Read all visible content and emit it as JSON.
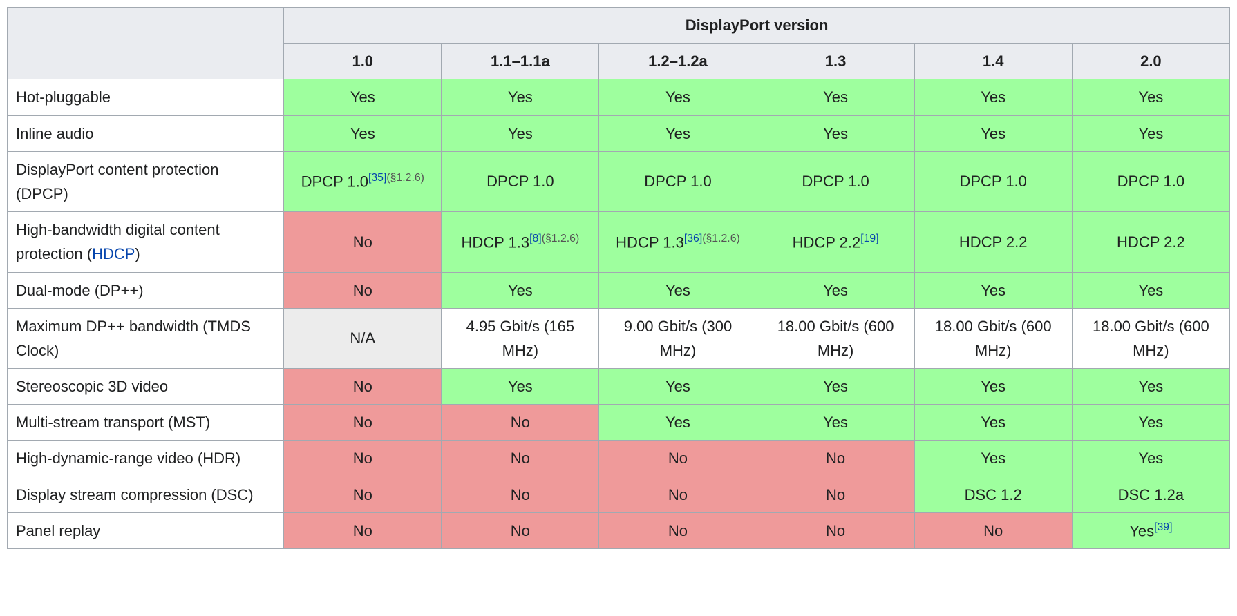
{
  "colors": {
    "yes_bg": "#9eff9e",
    "no_bg": "#ef9a9a",
    "na_bg": "#ececec",
    "header_bg": "#eaecf0",
    "border": "#a2a9b1",
    "link": "#0645ad",
    "text": "#202122",
    "ref_gray": "#555555"
  },
  "header": {
    "title": "DisplayPort version",
    "versions": [
      "1.0",
      "1.1–1.1a",
      "1.2–1.2a",
      "1.3",
      "1.4",
      "2.0"
    ]
  },
  "rows": [
    {
      "label_parts": [
        {
          "text": "Hot-pluggable"
        }
      ],
      "cells": [
        {
          "status": "yes",
          "parts": [
            {
              "text": "Yes"
            }
          ]
        },
        {
          "status": "yes",
          "parts": [
            {
              "text": "Yes"
            }
          ]
        },
        {
          "status": "yes",
          "parts": [
            {
              "text": "Yes"
            }
          ]
        },
        {
          "status": "yes",
          "parts": [
            {
              "text": "Yes"
            }
          ]
        },
        {
          "status": "yes",
          "parts": [
            {
              "text": "Yes"
            }
          ]
        },
        {
          "status": "yes",
          "parts": [
            {
              "text": "Yes"
            }
          ]
        }
      ]
    },
    {
      "label_parts": [
        {
          "text": "Inline audio"
        }
      ],
      "cells": [
        {
          "status": "yes",
          "parts": [
            {
              "text": "Yes"
            }
          ]
        },
        {
          "status": "yes",
          "parts": [
            {
              "text": "Yes"
            }
          ]
        },
        {
          "status": "yes",
          "parts": [
            {
              "text": "Yes"
            }
          ]
        },
        {
          "status": "yes",
          "parts": [
            {
              "text": "Yes"
            }
          ]
        },
        {
          "status": "yes",
          "parts": [
            {
              "text": "Yes"
            }
          ]
        },
        {
          "status": "yes",
          "parts": [
            {
              "text": "Yes"
            }
          ]
        }
      ]
    },
    {
      "label_parts": [
        {
          "text": "DisplayPort content protection (DPCP)"
        }
      ],
      "cells": [
        {
          "status": "yes",
          "parts": [
            {
              "text": "DPCP 1.0"
            },
            {
              "sup": true,
              "link": true,
              "text": "[35]"
            },
            {
              "sup": true,
              "ref_gray": true,
              "text": "(§1.2.6)"
            }
          ]
        },
        {
          "status": "yes",
          "parts": [
            {
              "text": "DPCP 1.0"
            }
          ]
        },
        {
          "status": "yes",
          "parts": [
            {
              "text": "DPCP 1.0"
            }
          ]
        },
        {
          "status": "yes",
          "parts": [
            {
              "text": "DPCP 1.0"
            }
          ]
        },
        {
          "status": "yes",
          "parts": [
            {
              "text": "DPCP 1.0"
            }
          ]
        },
        {
          "status": "yes",
          "parts": [
            {
              "text": "DPCP 1.0"
            }
          ]
        }
      ]
    },
    {
      "label_parts": [
        {
          "text": "High-bandwidth digital content protection ("
        },
        {
          "text": "HDCP",
          "link": true
        },
        {
          "text": ")"
        }
      ],
      "cells": [
        {
          "status": "no",
          "parts": [
            {
              "text": "No"
            }
          ]
        },
        {
          "status": "yes",
          "parts": [
            {
              "text": "HDCP 1.3"
            },
            {
              "sup": true,
              "link": true,
              "text": "[8]"
            },
            {
              "sup": true,
              "ref_gray": true,
              "text": "(§1.2.6)"
            }
          ]
        },
        {
          "status": "yes",
          "parts": [
            {
              "text": "HDCP 1.3"
            },
            {
              "sup": true,
              "link": true,
              "text": "[36]"
            },
            {
              "sup": true,
              "ref_gray": true,
              "text": "(§1.2.6)"
            }
          ]
        },
        {
          "status": "yes",
          "parts": [
            {
              "text": "HDCP 2.2"
            },
            {
              "sup": true,
              "link": true,
              "text": "[19]"
            }
          ]
        },
        {
          "status": "yes",
          "parts": [
            {
              "text": "HDCP 2.2"
            }
          ]
        },
        {
          "status": "yes",
          "parts": [
            {
              "text": "HDCP 2.2"
            }
          ]
        }
      ]
    },
    {
      "label_parts": [
        {
          "text": "Dual-mode (DP++)"
        }
      ],
      "cells": [
        {
          "status": "no",
          "parts": [
            {
              "text": "No"
            }
          ]
        },
        {
          "status": "yes",
          "parts": [
            {
              "text": "Yes"
            }
          ]
        },
        {
          "status": "yes",
          "parts": [
            {
              "text": "Yes"
            }
          ]
        },
        {
          "status": "yes",
          "parts": [
            {
              "text": "Yes"
            }
          ]
        },
        {
          "status": "yes",
          "parts": [
            {
              "text": "Yes"
            }
          ]
        },
        {
          "status": "yes",
          "parts": [
            {
              "text": "Yes"
            }
          ]
        }
      ]
    },
    {
      "label_parts": [
        {
          "text": "Maximum DP++ bandwidth (TMDS Clock)"
        }
      ],
      "cells": [
        {
          "status": "na",
          "parts": [
            {
              "text": "N/A"
            }
          ]
        },
        {
          "status": "plain",
          "parts": [
            {
              "text": "4.95 Gbit/s (165 MHz)"
            }
          ]
        },
        {
          "status": "plain",
          "parts": [
            {
              "text": "9.00 Gbit/s (300 MHz)"
            }
          ]
        },
        {
          "status": "plain",
          "parts": [
            {
              "text": "18.00 Gbit/s (600 MHz)"
            }
          ]
        },
        {
          "status": "plain",
          "parts": [
            {
              "text": "18.00 Gbit/s (600 MHz)"
            }
          ]
        },
        {
          "status": "plain",
          "parts": [
            {
              "text": "18.00 Gbit/s (600 MHz)"
            }
          ]
        }
      ]
    },
    {
      "label_parts": [
        {
          "text": "Stereoscopic 3D video"
        }
      ],
      "cells": [
        {
          "status": "no",
          "parts": [
            {
              "text": "No"
            }
          ]
        },
        {
          "status": "yes",
          "parts": [
            {
              "text": "Yes"
            }
          ]
        },
        {
          "status": "yes",
          "parts": [
            {
              "text": "Yes"
            }
          ]
        },
        {
          "status": "yes",
          "parts": [
            {
              "text": "Yes"
            }
          ]
        },
        {
          "status": "yes",
          "parts": [
            {
              "text": "Yes"
            }
          ]
        },
        {
          "status": "yes",
          "parts": [
            {
              "text": "Yes"
            }
          ]
        }
      ]
    },
    {
      "label_parts": [
        {
          "text": "Multi-stream transport (MST)"
        }
      ],
      "cells": [
        {
          "status": "no",
          "parts": [
            {
              "text": "No"
            }
          ]
        },
        {
          "status": "no",
          "parts": [
            {
              "text": "No"
            }
          ]
        },
        {
          "status": "yes",
          "parts": [
            {
              "text": "Yes"
            }
          ]
        },
        {
          "status": "yes",
          "parts": [
            {
              "text": "Yes"
            }
          ]
        },
        {
          "status": "yes",
          "parts": [
            {
              "text": "Yes"
            }
          ]
        },
        {
          "status": "yes",
          "parts": [
            {
              "text": "Yes"
            }
          ]
        }
      ]
    },
    {
      "label_parts": [
        {
          "text": "High-dynamic-range video (HDR)"
        }
      ],
      "cells": [
        {
          "status": "no",
          "parts": [
            {
              "text": "No"
            }
          ]
        },
        {
          "status": "no",
          "parts": [
            {
              "text": "No"
            }
          ]
        },
        {
          "status": "no",
          "parts": [
            {
              "text": "No"
            }
          ]
        },
        {
          "status": "no",
          "parts": [
            {
              "text": "No"
            }
          ]
        },
        {
          "status": "yes",
          "parts": [
            {
              "text": "Yes"
            }
          ]
        },
        {
          "status": "yes",
          "parts": [
            {
              "text": "Yes"
            }
          ]
        }
      ]
    },
    {
      "label_parts": [
        {
          "text": "Display stream compression (DSC)"
        }
      ],
      "cells": [
        {
          "status": "no",
          "parts": [
            {
              "text": "No"
            }
          ]
        },
        {
          "status": "no",
          "parts": [
            {
              "text": "No"
            }
          ]
        },
        {
          "status": "no",
          "parts": [
            {
              "text": "No"
            }
          ]
        },
        {
          "status": "no",
          "parts": [
            {
              "text": "No"
            }
          ]
        },
        {
          "status": "yes",
          "parts": [
            {
              "text": "DSC 1.2"
            }
          ]
        },
        {
          "status": "yes",
          "parts": [
            {
              "text": "DSC 1.2a"
            }
          ]
        }
      ]
    },
    {
      "label_parts": [
        {
          "text": "Panel replay"
        }
      ],
      "cells": [
        {
          "status": "no",
          "parts": [
            {
              "text": "No"
            }
          ]
        },
        {
          "status": "no",
          "parts": [
            {
              "text": "No"
            }
          ]
        },
        {
          "status": "no",
          "parts": [
            {
              "text": "No"
            }
          ]
        },
        {
          "status": "no",
          "parts": [
            {
              "text": "No"
            }
          ]
        },
        {
          "status": "no",
          "parts": [
            {
              "text": "No"
            }
          ]
        },
        {
          "status": "yes",
          "parts": [
            {
              "text": "Yes"
            },
            {
              "sup": true,
              "link": true,
              "text": "[39]"
            }
          ]
        }
      ]
    }
  ]
}
